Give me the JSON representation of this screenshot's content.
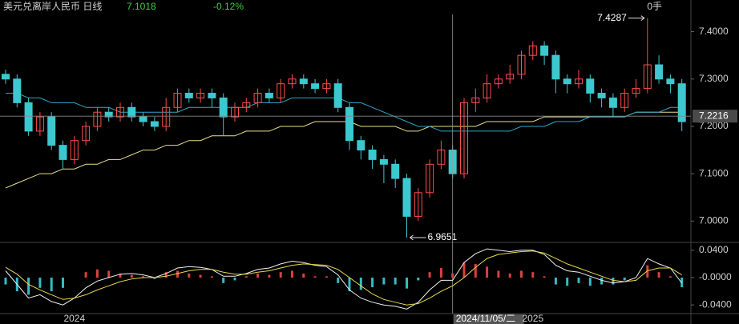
{
  "chart_data": [
    {
      "type": "candlestick",
      "title": "美元兑离岸人民币 日线",
      "last_value": "7.1018",
      "change": "-0.12%",
      "volume": "0手",
      "up_color": "#ff4d4d",
      "down_color": "#3cc8cf",
      "categories": [
        null,
        null,
        null,
        null,
        null,
        null,
        "2024",
        null,
        null,
        null,
        null,
        null,
        null,
        null,
        null,
        null,
        null,
        null,
        null,
        null,
        null,
        null,
        null,
        null,
        null,
        null,
        null,
        null,
        null,
        null,
        null,
        null,
        null,
        null,
        null,
        null,
        null,
        null,
        null,
        "2024/11/05/二",
        null,
        null,
        null,
        null,
        null,
        null,
        "2025",
        null,
        null,
        null,
        null,
        null,
        null,
        null,
        null,
        null,
        null,
        null,
        null,
        null
      ],
      "open": [
        7.31,
        7.3,
        7.25,
        7.19,
        7.22,
        7.16,
        7.13,
        7.17,
        7.2,
        7.23,
        7.22,
        7.24,
        7.22,
        7.21,
        7.2,
        7.24,
        7.27,
        7.26,
        7.27,
        7.26,
        7.22,
        7.24,
        7.25,
        7.27,
        7.26,
        7.29,
        7.3,
        7.29,
        7.28,
        7.29,
        7.24,
        7.17,
        7.15,
        7.13,
        7.12,
        7.09,
        7.01,
        7.06,
        7.12,
        7.15,
        7.1,
        7.25,
        7.26,
        7.29,
        7.3,
        7.31,
        7.35,
        7.37,
        7.35,
        7.3,
        7.29,
        7.3,
        7.27,
        7.26,
        7.24,
        7.27,
        7.28,
        7.33,
        7.3,
        7.29
      ],
      "high": [
        7.32,
        7.31,
        7.26,
        7.23,
        7.23,
        7.17,
        7.18,
        7.21,
        7.24,
        7.24,
        7.25,
        7.25,
        7.23,
        7.22,
        7.26,
        7.28,
        7.28,
        7.28,
        7.28,
        7.27,
        7.25,
        7.26,
        7.28,
        7.28,
        7.3,
        7.31,
        7.31,
        7.3,
        7.3,
        7.3,
        7.25,
        7.18,
        7.16,
        7.14,
        7.13,
        7.1,
        7.07,
        7.13,
        7.17,
        7.16,
        7.26,
        7.28,
        7.31,
        7.31,
        7.33,
        7.36,
        7.38,
        7.38,
        7.36,
        7.31,
        7.32,
        7.31,
        7.28,
        7.27,
        7.28,
        7.3,
        7.4287,
        7.35,
        7.31,
        7.3
      ],
      "low": [
        7.29,
        7.24,
        7.18,
        7.18,
        7.15,
        7.11,
        7.12,
        7.16,
        7.19,
        7.21,
        7.21,
        7.21,
        7.2,
        7.19,
        7.19,
        7.23,
        7.25,
        7.25,
        7.24,
        7.18,
        7.21,
        7.23,
        7.24,
        7.25,
        7.25,
        7.28,
        7.28,
        7.27,
        7.27,
        7.23,
        7.15,
        7.13,
        7.11,
        7.08,
        7.07,
        6.9651,
        7.0,
        7.05,
        7.11,
        7.09,
        7.09,
        7.23,
        7.25,
        7.28,
        7.29,
        7.3,
        7.34,
        7.33,
        7.27,
        7.27,
        7.28,
        7.25,
        7.24,
        7.22,
        7.23,
        7.26,
        7.27,
        7.29,
        7.27,
        7.19
      ],
      "close": [
        7.3,
        7.25,
        7.19,
        7.22,
        7.16,
        7.13,
        7.17,
        7.2,
        7.23,
        7.22,
        7.24,
        7.22,
        7.21,
        7.2,
        7.24,
        7.27,
        7.26,
        7.27,
        7.26,
        7.22,
        7.24,
        7.25,
        7.27,
        7.26,
        7.29,
        7.3,
        7.29,
        7.28,
        7.29,
        7.24,
        7.17,
        7.15,
        7.13,
        7.12,
        7.09,
        7.01,
        7.06,
        7.12,
        7.15,
        7.1,
        7.25,
        7.26,
        7.29,
        7.3,
        7.31,
        7.35,
        7.37,
        7.35,
        7.3,
        7.29,
        7.3,
        7.27,
        7.26,
        7.24,
        7.27,
        7.28,
        7.33,
        7.3,
        7.29,
        7.21
      ],
      "max_label": "7.4287",
      "min_label": "6.9651",
      "lines": [
        {
          "color": "#e8e08a",
          "values": [
            7.07,
            7.08,
            7.09,
            7.1,
            7.1,
            7.11,
            7.11,
            7.12,
            7.12,
            7.13,
            7.13,
            7.14,
            7.15,
            7.15,
            7.16,
            7.16,
            7.17,
            7.17,
            7.18,
            7.18,
            7.18,
            7.19,
            7.19,
            7.19,
            7.2,
            7.2,
            7.2,
            7.21,
            7.21,
            7.21,
            7.21,
            7.2,
            7.2,
            7.2,
            7.2,
            7.19,
            7.19,
            7.2,
            7.2,
            7.2,
            7.2,
            7.2,
            7.21,
            7.21,
            7.21,
            7.21,
            7.21,
            7.22,
            7.22,
            7.22,
            7.22,
            7.22,
            7.22,
            7.22,
            7.22,
            7.23,
            7.23,
            7.23,
            7.23,
            7.23
          ]
        },
        {
          "color": "#2fa9c9",
          "values": [
            7.27,
            7.27,
            7.26,
            7.26,
            7.25,
            7.25,
            7.25,
            7.24,
            7.24,
            7.24,
            7.23,
            7.23,
            7.23,
            7.23,
            7.23,
            7.23,
            7.24,
            7.24,
            7.24,
            7.24,
            7.24,
            7.24,
            7.25,
            7.25,
            7.25,
            7.26,
            7.26,
            7.26,
            7.26,
            7.26,
            7.25,
            7.25,
            7.24,
            7.23,
            7.22,
            7.21,
            7.2,
            7.2,
            7.19,
            7.19,
            7.19,
            7.19,
            7.19,
            7.19,
            7.19,
            7.2,
            7.2,
            7.2,
            7.21,
            7.21,
            7.21,
            7.22,
            7.22,
            7.22,
            7.22,
            7.23,
            7.23,
            7.23,
            7.24,
            7.24
          ]
        }
      ],
      "current_price": {
        "value": 7.2216,
        "label": "7.2216"
      },
      "ylim": [
        6.96,
        7.45
      ],
      "yticks": [
        {
          "value": 7.4,
          "label": "7.4000"
        },
        {
          "value": 7.3,
          "label": "7.3000"
        },
        {
          "value": 7.2,
          "label": "7.2000"
        },
        {
          "value": 7.1,
          "label": "7.1000"
        },
        {
          "value": 7.0,
          "label": "7.0000"
        }
      ]
    },
    {
      "type": "macd",
      "up_color": "#d9413f",
      "down_color": "#34bcc4",
      "histogram": [
        -0.01,
        -0.02,
        -0.025,
        -0.015,
        -0.02,
        -0.015,
        0.0,
        0.008,
        0.012,
        0.01,
        0.006,
        0.004,
        0.002,
        -0.002,
        0.008,
        0.01,
        0.006,
        0.004,
        0.002,
        -0.008,
        -0.004,
        0.002,
        0.006,
        0.004,
        0.008,
        0.01,
        0.006,
        0.002,
        0.002,
        -0.008,
        -0.02,
        -0.018,
        -0.014,
        -0.01,
        -0.01,
        -0.016,
        -0.004,
        0.008,
        0.014,
        0.006,
        0.022,
        0.02,
        0.016,
        0.01,
        0.006,
        0.01,
        0.008,
        0.002,
        -0.01,
        -0.012,
        -0.008,
        -0.012,
        -0.01,
        -0.01,
        -0.004,
        0.0,
        0.018,
        0.008,
        0.002,
        -0.014
      ],
      "series": [
        {
          "color": "#f0f0f0",
          "values": [
            0.01,
            -0.01,
            -0.03,
            -0.025,
            -0.035,
            -0.04,
            -0.03,
            -0.015,
            -0.005,
            0.0,
            0.005,
            0.006,
            0.004,
            0.0,
            0.006,
            0.014,
            0.016,
            0.015,
            0.012,
            0.002,
            0.002,
            0.006,
            0.012,
            0.014,
            0.02,
            0.024,
            0.022,
            0.018,
            0.016,
            0.004,
            -0.018,
            -0.03,
            -0.036,
            -0.04,
            -0.042,
            -0.046,
            -0.036,
            -0.018,
            -0.004,
            -0.004,
            0.022,
            0.035,
            0.042,
            0.04,
            0.038,
            0.04,
            0.04,
            0.034,
            0.018,
            0.01,
            0.008,
            0.002,
            -0.004,
            -0.008,
            -0.006,
            0.0,
            0.028,
            0.02,
            0.014,
            -0.008
          ]
        },
        {
          "color": "#e8d84a",
          "values": [
            0.015,
            0.005,
            -0.01,
            -0.018,
            -0.025,
            -0.032,
            -0.03,
            -0.025,
            -0.018,
            -0.012,
            -0.006,
            -0.002,
            0.0,
            0.0,
            0.002,
            0.006,
            0.01,
            0.012,
            0.012,
            0.008,
            0.005,
            0.005,
            0.008,
            0.01,
            0.014,
            0.018,
            0.02,
            0.019,
            0.018,
            0.012,
            0.0,
            -0.012,
            -0.024,
            -0.032,
            -0.036,
            -0.04,
            -0.038,
            -0.03,
            -0.02,
            -0.012,
            0.0,
            0.015,
            0.028,
            0.034,
            0.036,
            0.038,
            0.039,
            0.036,
            0.028,
            0.02,
            0.014,
            0.008,
            0.002,
            -0.004,
            -0.006,
            -0.004,
            0.01,
            0.014,
            0.014,
            0.004
          ]
        }
      ],
      "ylim": [
        -0.048,
        0.048
      ],
      "yticks": [
        {
          "value": 0.04,
          "label": "0.0400"
        },
        {
          "value": 0,
          "label": "-0.0000"
        },
        {
          "value": -0.04,
          "label": "-0.0400"
        }
      ]
    }
  ]
}
